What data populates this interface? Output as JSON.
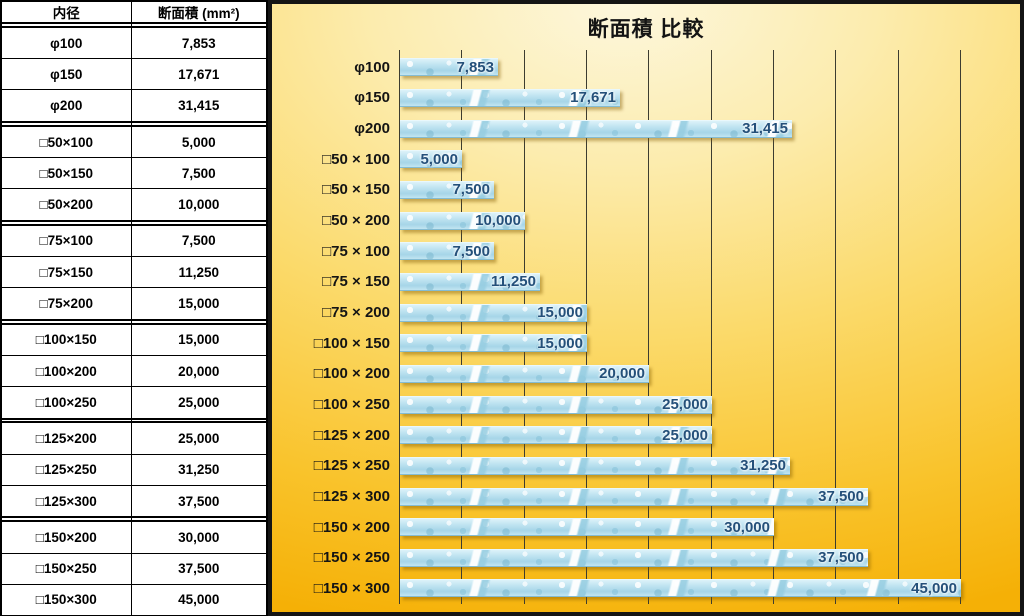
{
  "table": {
    "headers": [
      "内径",
      "断面積 (mm²)"
    ],
    "rows": [
      {
        "label": "",
        "value": ""
      },
      {
        "label": "φ100",
        "value": "7,853"
      },
      {
        "label": "φ150",
        "value": "17,671"
      },
      {
        "label": "φ200",
        "value": "31,415"
      },
      {
        "label": "",
        "value": ""
      },
      {
        "label": "□50×100",
        "value": "5,000"
      },
      {
        "label": "□50×150",
        "value": "7,500"
      },
      {
        "label": "□50×200",
        "value": "10,000"
      },
      {
        "label": "",
        "value": ""
      },
      {
        "label": "□75×100",
        "value": "7,500"
      },
      {
        "label": "□75×150",
        "value": "11,250"
      },
      {
        "label": "□75×200",
        "value": "15,000"
      },
      {
        "label": "",
        "value": ""
      },
      {
        "label": "□100×150",
        "value": "15,000"
      },
      {
        "label": "□100×200",
        "value": "20,000"
      },
      {
        "label": "□100×250",
        "value": "25,000"
      },
      {
        "label": "",
        "value": ""
      },
      {
        "label": "□125×200",
        "value": "25,000"
      },
      {
        "label": "□125×250",
        "value": "31,250"
      },
      {
        "label": "□125×300",
        "value": "37,500"
      },
      {
        "label": "",
        "value": ""
      },
      {
        "label": "□150×200",
        "value": "30,000"
      },
      {
        "label": "□150×250",
        "value": "37,500"
      },
      {
        "label": "□150×300",
        "value": "45,000"
      }
    ]
  },
  "chart_data": {
    "type": "bar",
    "orientation": "horizontal",
    "title": "断面積 比較",
    "categories": [
      "φ100",
      "φ150",
      "φ200",
      "□50 × 100",
      "□50 × 150",
      "□50 × 200",
      "□75 × 100",
      "□75 × 150",
      "□75 × 200",
      "□100 × 150",
      "□100 × 200",
      "□100 × 250",
      "□125 × 200",
      "□125 × 250",
      "□125 × 300",
      "□150 × 200",
      "□150 × 250",
      "□150 × 300"
    ],
    "values": [
      7853,
      17671,
      31415,
      5000,
      7500,
      10000,
      7500,
      11250,
      15000,
      15000,
      20000,
      25000,
      25000,
      31250,
      37500,
      30000,
      37500,
      45000
    ],
    "value_labels": [
      "7,853",
      "17,671",
      "31,415",
      "5,000",
      "7,500",
      "10,000",
      "7,500",
      "11,250",
      "15,000",
      "15,000",
      "20,000",
      "25,000",
      "25,000",
      "31,250",
      "37,500",
      "30,000",
      "37,500",
      "45,000"
    ],
    "xlabel": "",
    "ylabel": "",
    "xlim": [
      0,
      45000
    ],
    "gridline_interval": 5000,
    "grid": "vertical",
    "legend": "none",
    "colors": {
      "bar_fill": "#b8dfee",
      "value_label": "#24507a",
      "gridline": "#3c3c30",
      "background_light": "#fdf7dd",
      "background_gold": "#f5b006",
      "frame": "#141414"
    }
  }
}
